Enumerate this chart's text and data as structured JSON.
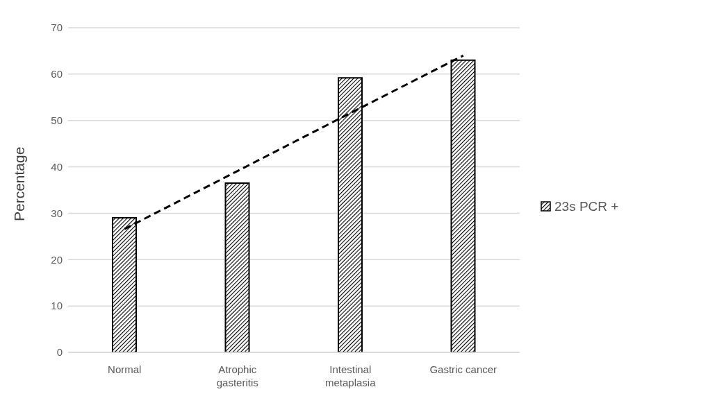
{
  "chart_data": {
    "type": "bar",
    "ylabel": "Percentage",
    "categories": [
      "Normal",
      "Atrophic gasteritis",
      "Intestinal metaplasia",
      "Gastric cancer"
    ],
    "series": [
      {
        "name": "23s PCR +",
        "color": "#000000",
        "values": [
          29.0,
          36.5,
          59.2,
          63.0
        ]
      },
      {
        "type": "line",
        "color": "#000000",
        "line_style": "dashed",
        "marker": "none",
        "values": [
          26.6,
          39.1,
          51.6,
          64.0
        ]
      }
    ],
    "ylim": [
      0,
      70
    ],
    "yticks": [
      0,
      10,
      20,
      30,
      40,
      50,
      60,
      70
    ],
    "grid": "y",
    "legend": "right"
  }
}
